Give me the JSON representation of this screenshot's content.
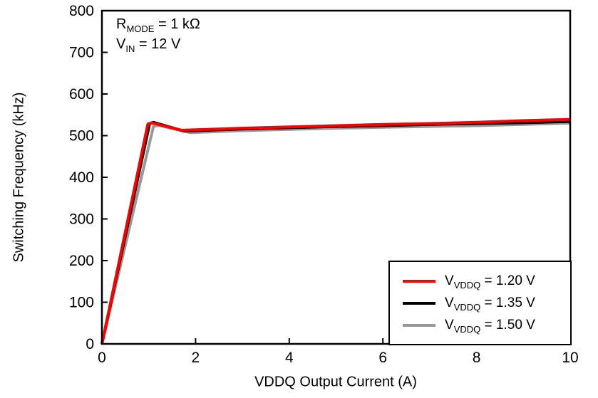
{
  "annotation": {
    "line1": {
      "prefix": "R",
      "sub": "MODE",
      "rest": " = 1 kΩ"
    },
    "line2": {
      "prefix": "V",
      "sub": "IN",
      "rest": " = 12 V"
    }
  },
  "legend": {
    "items": [
      {
        "prefix": "V",
        "sub": "VDDQ",
        "rest": " = 1.20 V",
        "color": "#ff0000"
      },
      {
        "prefix": "V",
        "sub": "VDDQ",
        "rest": " = 1.35 V",
        "color": "#000000"
      },
      {
        "prefix": "V",
        "sub": "VDDQ",
        "rest": " = 1.50 V",
        "color": "#999999"
      }
    ]
  },
  "chart_data": {
    "type": "line",
    "title": "",
    "xlabel": "VDDQ Output Current (A)",
    "ylabel": "Switching Frequency (kHz)",
    "xlim": [
      0,
      10
    ],
    "ylim": [
      0,
      800
    ],
    "xticks": [
      0,
      2,
      4,
      6,
      8,
      10
    ],
    "yticks": [
      0,
      100,
      200,
      300,
      400,
      500,
      600,
      700,
      800
    ],
    "grid": false,
    "legend_position": "lower right",
    "series": [
      {
        "name": "VVDDQ = 1.50 V",
        "color": "#999999",
        "points": [
          [
            0,
            0
          ],
          [
            1.1,
            522
          ],
          [
            1.2,
            525
          ],
          [
            1.9,
            507
          ],
          [
            2.1,
            508
          ],
          [
            3,
            512
          ],
          [
            4,
            515
          ],
          [
            5,
            518
          ],
          [
            6,
            520
          ],
          [
            7,
            522
          ],
          [
            8,
            524
          ],
          [
            9,
            527
          ],
          [
            10,
            530
          ]
        ]
      },
      {
        "name": "VVDDQ = 1.35 V",
        "color": "#000000",
        "points": [
          [
            0,
            0
          ],
          [
            1.02,
            529
          ],
          [
            1.1,
            532
          ],
          [
            1.75,
            511
          ],
          [
            2,
            512
          ],
          [
            3,
            516
          ],
          [
            4,
            519
          ],
          [
            5,
            522
          ],
          [
            6,
            524
          ],
          [
            7,
            527
          ],
          [
            8,
            529
          ],
          [
            9,
            531
          ],
          [
            10,
            534
          ]
        ]
      },
      {
        "name": "VVDDQ = 1.20 V",
        "color": "#ff0000",
        "points": [
          [
            0,
            0
          ],
          [
            0.98,
            528
          ],
          [
            1.06,
            531
          ],
          [
            1.7,
            513
          ],
          [
            2,
            514
          ],
          [
            3,
            518
          ],
          [
            4,
            521
          ],
          [
            5,
            524
          ],
          [
            6,
            527
          ],
          [
            7,
            529
          ],
          [
            8,
            532
          ],
          [
            9,
            536
          ],
          [
            10,
            539
          ]
        ]
      }
    ]
  }
}
